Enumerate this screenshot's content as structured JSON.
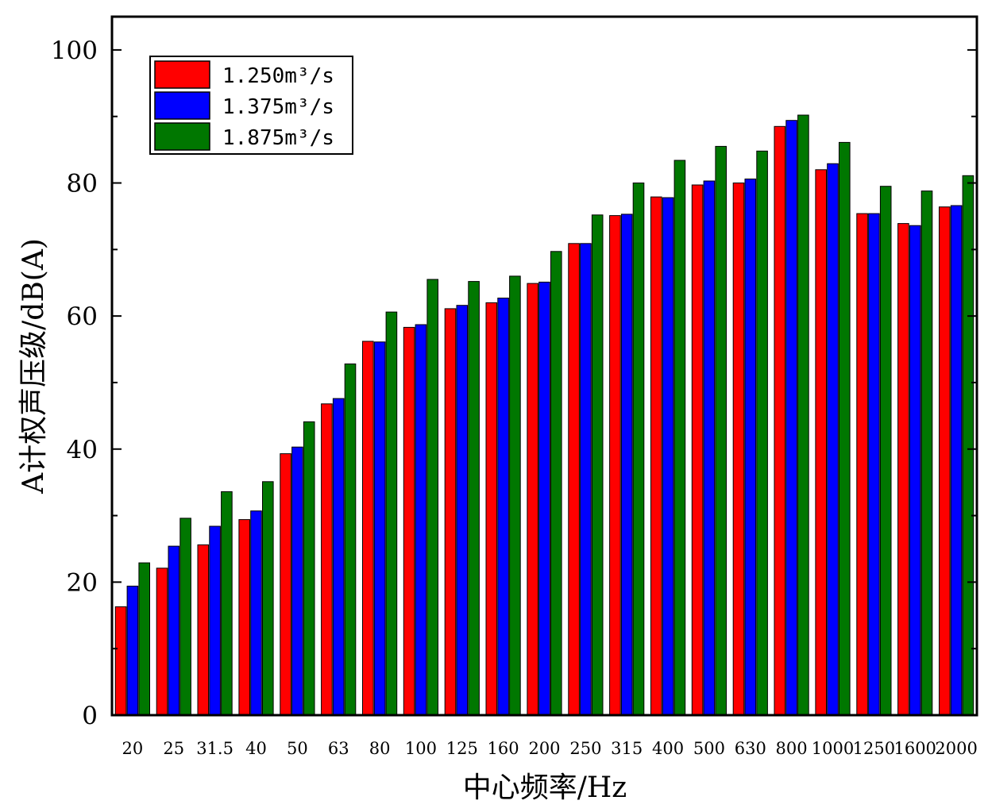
{
  "chart_data": {
    "type": "bar",
    "xlabel": "中心频率/Hz",
    "ylabel": "A计权声压级/dB(A)",
    "ylim": [
      0,
      105
    ],
    "yticks": [
      0,
      20,
      40,
      60,
      80,
      100
    ],
    "categories": [
      "20",
      "25",
      "31.5",
      "40",
      "50",
      "63",
      "80",
      "100",
      "125",
      "160",
      "200",
      "250",
      "315",
      "400",
      "500",
      "630",
      "800",
      "1000",
      "1250",
      "1600",
      "2000"
    ],
    "series": [
      {
        "name": "1.250m³/s",
        "color": "#ff0000",
        "values": [
          16.3,
          22.1,
          25.6,
          29.4,
          39.3,
          46.8,
          56.2,
          58.3,
          61.1,
          62.0,
          64.9,
          70.9,
          75.1,
          77.9,
          79.7,
          80.0,
          88.5,
          82.0,
          75.4,
          73.9,
          76.4
        ]
      },
      {
        "name": "1.375m³/s",
        "color": "#0000ff",
        "values": [
          19.4,
          25.4,
          28.4,
          30.7,
          40.3,
          47.6,
          56.1,
          58.7,
          61.6,
          62.7,
          65.1,
          70.9,
          75.3,
          77.8,
          80.3,
          80.6,
          89.4,
          82.9,
          75.4,
          73.6,
          76.6
        ]
      },
      {
        "name": "1.875m³/s",
        "color": "#007700",
        "values": [
          22.9,
          29.6,
          33.6,
          35.1,
          44.1,
          52.8,
          60.6,
          65.5,
          65.2,
          66.0,
          69.7,
          75.2,
          80.0,
          83.4,
          85.5,
          84.8,
          90.2,
          86.1,
          79.5,
          78.8,
          81.1
        ]
      }
    ],
    "legend": "top-left",
    "grid": false
  }
}
